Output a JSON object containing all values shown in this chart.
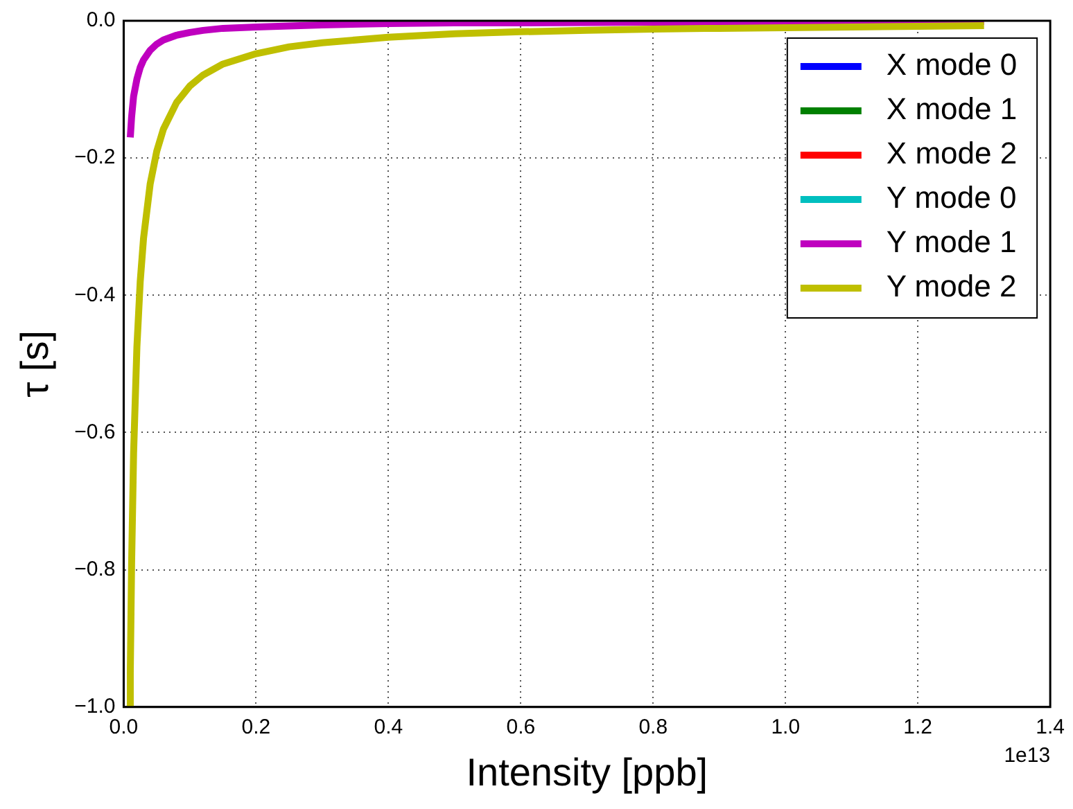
{
  "chart_data": {
    "type": "line",
    "xlabel": "Intensity [ppb]",
    "ylabel": "τ [s]",
    "xlim": [
      0,
      1.4
    ],
    "xticks": [
      {
        "value": 0,
        "label": "0.0"
      },
      0.2,
      0.4,
      0.6,
      0.8,
      {
        "value": 1,
        "label": "1.0"
      },
      1.2,
      1.4
    ],
    "ylim": [
      -1,
      0
    ],
    "yticks": [
      {
        "value": -1,
        "label": "−1.0"
      },
      {
        "value": -0.8,
        "label": "−0.8"
      },
      {
        "value": -0.6,
        "label": "−0.6"
      },
      {
        "value": -0.4,
        "label": "−0.4"
      },
      {
        "value": -0.2,
        "label": "−0.2"
      },
      {
        "value": 0,
        "label": "0.0"
      }
    ],
    "grid": true,
    "legend": "top right",
    "line_style": "solid",
    "marker": "none",
    "annotations": [
      "1e13"
    ],
    "series": [
      {
        "name": "X mode 0",
        "color": "#0000ff"
      },
      {
        "name": "X mode 1",
        "color": "#008000"
      },
      {
        "name": "X mode 2",
        "color": "#ff0000"
      },
      {
        "name": "Y mode 0",
        "color": "#00bfbf"
      },
      {
        "name": "Y mode 1",
        "color": "#bf00bf",
        "x": [
          0.01,
          0.012,
          0.015,
          0.02,
          0.025,
          0.03,
          0.04,
          0.05,
          0.06,
          0.08,
          0.1,
          0.12,
          0.15,
          0.2,
          0.3,
          0.4,
          0.5,
          0.6,
          0.8,
          1.0,
          1.3
        ],
        "values": [
          -0.17,
          -0.14,
          -0.11,
          -0.085,
          -0.068,
          -0.057,
          -0.043,
          -0.034,
          -0.028,
          -0.021,
          -0.017,
          -0.014,
          -0.011,
          -0.009,
          -0.006,
          -0.004,
          -0.003,
          -0.003,
          -0.002,
          -0.002,
          -0.001
        ]
      },
      {
        "name": "Y mode 2",
        "color": "#bfbf00",
        "x": [
          0.0095,
          0.01,
          0.012,
          0.015,
          0.02,
          0.025,
          0.03,
          0.04,
          0.05,
          0.06,
          0.08,
          0.1,
          0.12,
          0.15,
          0.2,
          0.25,
          0.3,
          0.4,
          0.5,
          0.6,
          0.7,
          0.8,
          0.9,
          1.0,
          1.1,
          1.2,
          1.3
        ],
        "values": [
          -1.0,
          -0.95,
          -0.79,
          -0.63,
          -0.475,
          -0.38,
          -0.317,
          -0.238,
          -0.19,
          -0.158,
          -0.119,
          -0.095,
          -0.079,
          -0.063,
          -0.048,
          -0.038,
          -0.032,
          -0.024,
          -0.019,
          -0.016,
          -0.014,
          -0.012,
          -0.011,
          -0.01,
          -0.009,
          -0.008,
          -0.007
        ]
      }
    ]
  }
}
